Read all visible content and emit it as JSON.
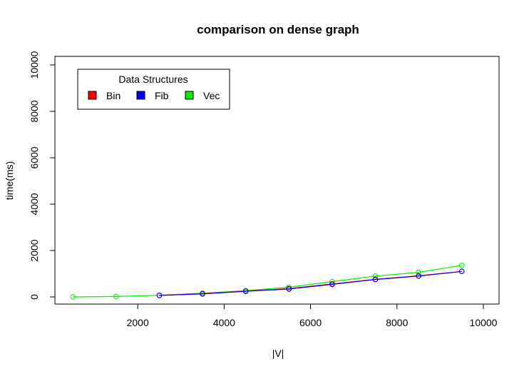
{
  "chart_data": {
    "type": "line",
    "title": "comparison on dense graph",
    "xlabel": "|V|",
    "ylabel": "time(ms)",
    "xlim": [
      0,
      10000
    ],
    "ylim": [
      0,
      10000
    ],
    "x_ticks": [
      2000,
      4000,
      6000,
      8000,
      10000
    ],
    "y_ticks": [
      0,
      2000,
      4000,
      6000,
      8000,
      10000
    ],
    "grid": false,
    "legend": {
      "title": "Data Structures",
      "placement": "top-left",
      "entries": [
        "Bin",
        "Fib",
        "Vec"
      ]
    },
    "x": [
      500,
      1500,
      2500,
      3500,
      4500,
      5500,
      6500,
      7500,
      8500,
      9500
    ],
    "series": [
      {
        "name": "Bin",
        "color": "#ff0000",
        "values": [
          null,
          null,
          70,
          140,
          250,
          360,
          560,
          760,
          910,
          1100
        ]
      },
      {
        "name": "Fib",
        "color": "#0000ff",
        "values": [
          null,
          null,
          65,
          130,
          240,
          340,
          540,
          750,
          900,
          1100
        ]
      },
      {
        "name": "Vec",
        "color": "#00ee00",
        "values": [
          0,
          20,
          70,
          160,
          270,
          420,
          660,
          900,
          1060,
          1360
        ]
      }
    ]
  }
}
